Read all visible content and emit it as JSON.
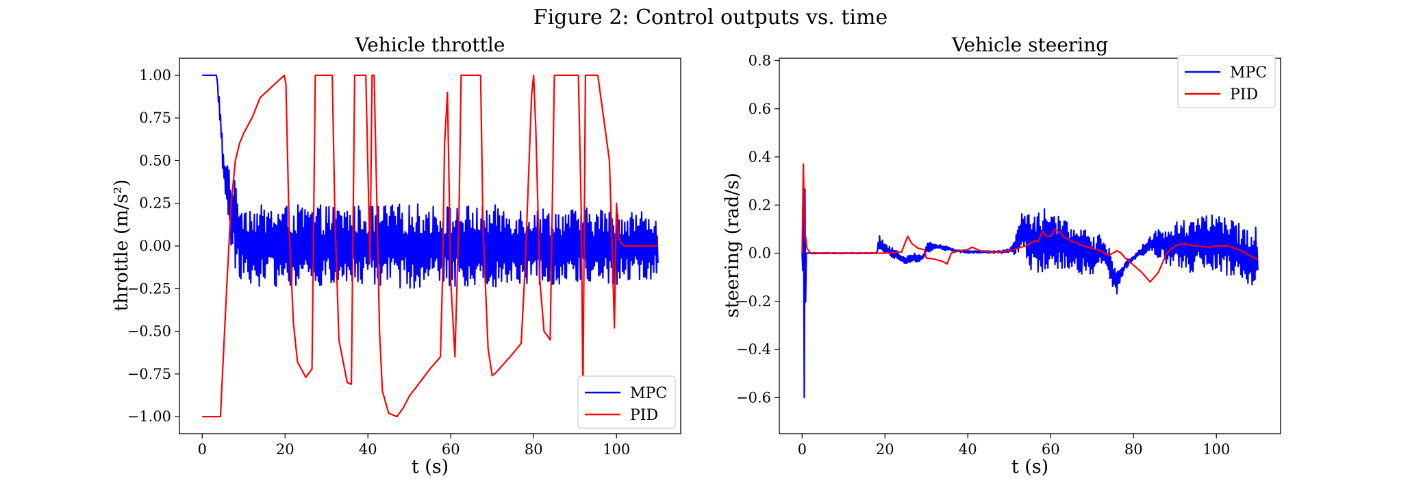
{
  "figure": {
    "title": "Figure 2: Control outputs vs. time"
  },
  "chart_data": [
    {
      "type": "line",
      "title": "Vehicle throttle",
      "xlabel": "t (s)",
      "ylabel": "throttle (m/s²)",
      "xlim": [
        -5.5,
        115.5
      ],
      "ylim": [
        -1.1,
        1.1
      ],
      "xticks": [
        0,
        20,
        40,
        60,
        80,
        100
      ],
      "yticks": [
        1.0,
        0.75,
        0.5,
        0.25,
        0.0,
        -0.25,
        -0.5,
        -0.75,
        -1.0
      ],
      "ytick_labels": [
        "1.00",
        "0.75",
        "0.50",
        "0.25",
        "0.00",
        "−0.25",
        "−0.50",
        "−0.75",
        "−1.00"
      ],
      "legend": {
        "position": "lower-right",
        "entries": [
          "MPC",
          "PID"
        ]
      },
      "grid": false,
      "series": [
        {
          "name": "MPC",
          "color": "#0000ff",
          "pattern": "oscillation",
          "x": [
            0,
            3.5,
            4,
            4.5,
            5,
            5.5,
            6,
            7,
            8,
            10,
            14,
            20,
            30,
            40,
            50,
            60,
            70,
            80,
            90,
            100,
            110
          ],
          "y": [
            1.0,
            1.0,
            0.85,
            0.7,
            0.5,
            0.42,
            0.35,
            0.22,
            0.12,
            0.02,
            0,
            0,
            0,
            0,
            0,
            0,
            0,
            0,
            0,
            0,
            0
          ],
          "amplitude": [
            0,
            0,
            0.05,
            0.07,
            0.08,
            0.12,
            0.18,
            0.24,
            0.25,
            0.25,
            0.24,
            0.24,
            0.24,
            0.24,
            0.25,
            0.24,
            0.24,
            0.23,
            0.22,
            0.23,
            0.2
          ]
        },
        {
          "name": "PID",
          "color": "#ff0000",
          "x": [
            0,
            4.4,
            5,
            6,
            7,
            8,
            9,
            10,
            12,
            14,
            19.8,
            20.2,
            21,
            22,
            23,
            25,
            26.5,
            27.3,
            31.4,
            32,
            33,
            35,
            36,
            36.8,
            39.5,
            40.5,
            41,
            41.5,
            42.2,
            42.8,
            43.5,
            45,
            47,
            48.5,
            50,
            55,
            57.5,
            58,
            58.5,
            59.2,
            60,
            61,
            62,
            62.5,
            63.2,
            67.2,
            67.8,
            69,
            70,
            71,
            75,
            77,
            78,
            79.5,
            80,
            80.5,
            81.5,
            82.5,
            84,
            85,
            86.7,
            87.8,
            90.8,
            91.5,
            91.9,
            92.5,
            94,
            95.5,
            98.3,
            99,
            99.5,
            100,
            100.5,
            101,
            102,
            104,
            110
          ],
          "y": [
            -1.0,
            -1.0,
            -0.7,
            -0.2,
            0.25,
            0.5,
            0.6,
            0.66,
            0.75,
            0.87,
            1.0,
            0.95,
            0.1,
            -0.45,
            -0.68,
            -0.77,
            -0.72,
            1.0,
            1.0,
            0.2,
            -0.55,
            -0.8,
            -0.81,
            1.0,
            1.0,
            -0.1,
            1.0,
            1.0,
            0.2,
            -0.5,
            -0.85,
            -0.98,
            -1.0,
            -0.95,
            -0.88,
            -0.72,
            -0.65,
            -0.2,
            0.6,
            0.9,
            -0.2,
            -0.65,
            0.2,
            1.0,
            1.0,
            1.0,
            0.1,
            -0.6,
            -0.76,
            -0.74,
            -0.63,
            -0.57,
            -0.1,
            0.88,
            1.0,
            0.7,
            -0.2,
            -0.5,
            -0.55,
            1.0,
            1.0,
            1.0,
            1.0,
            0.2,
            -0.9,
            1.0,
            1.0,
            1.0,
            0.5,
            -0.05,
            -0.48,
            0.25,
            0.05,
            0.02,
            0.0,
            0.0,
            0.0
          ]
        }
      ]
    },
    {
      "type": "line",
      "title": "Vehicle steering",
      "xlabel": "t (s)",
      "ylabel": "steering (rad/s)",
      "xlim": [
        -5.5,
        115.5
      ],
      "ylim": [
        -0.75,
        0.81
      ],
      "xticks": [
        0,
        20,
        40,
        60,
        80,
        100
      ],
      "yticks": [
        0.8,
        0.6,
        0.4,
        0.2,
        0.0,
        -0.2,
        -0.4,
        -0.6
      ],
      "ytick_labels": [
        "0.8",
        "0.6",
        "0.4",
        "0.2",
        "0.0",
        "−0.2",
        "−0.4",
        "−0.6"
      ],
      "legend": {
        "position": "upper-right",
        "entries": [
          "MPC",
          "PID"
        ]
      },
      "grid": false,
      "series": [
        {
          "name": "MPC",
          "color": "#0000ff",
          "pattern": "oscillation",
          "x": [
            0,
            0.3,
            0.6,
            1,
            2,
            10,
            18,
            18.5,
            20,
            23,
            25,
            27,
            29,
            30,
            32,
            35,
            37,
            40,
            45,
            48,
            50,
            51,
            52,
            53,
            54,
            55,
            56,
            57,
            58,
            59,
            60,
            61,
            62,
            63,
            65,
            67,
            69,
            70,
            72,
            73,
            75,
            76,
            78,
            80,
            82,
            84,
            86,
            88,
            90,
            94,
            98,
            100,
            102,
            106,
            110
          ],
          "y": [
            0,
            0.05,
            -0.02,
            0.0,
            0.0,
            0.0,
            0.0,
            0.04,
            0.02,
            -0.01,
            -0.03,
            -0.02,
            -0.02,
            0.02,
            0.03,
            0.02,
            0.01,
            0.005,
            0.005,
            0.005,
            0.01,
            0.02,
            0.05,
            0.08,
            0.09,
            0.05,
            0.02,
            0.03,
            0.06,
            0.05,
            0.03,
            0.02,
            0.04,
            0.05,
            0.03,
            0.01,
            0.0,
            -0.02,
            0.02,
            0.01,
            -0.08,
            -0.12,
            -0.05,
            -0.02,
            0.01,
            0.04,
            0.04,
            0.03,
            0.03,
            0.04,
            0.05,
            0.04,
            0.03,
            0.0,
            -0.02
          ],
          "amplitude": [
            0,
            0.7,
            0.6,
            0,
            0.002,
            0.002,
            0.002,
            0.04,
            0.02,
            0.02,
            0.02,
            0.02,
            0.01,
            0.03,
            0.01,
            0.01,
            0.005,
            0.005,
            0.005,
            0.005,
            0.01,
            0.03,
            0.05,
            0.09,
            0.1,
            0.12,
            0.13,
            0.14,
            0.15,
            0.15,
            0.14,
            0.13,
            0.12,
            0.11,
            0.1,
            0.1,
            0.09,
            0.08,
            0.07,
            0.06,
            0.06,
            0.05,
            0.02,
            0.01,
            0.02,
            0.04,
            0.06,
            0.08,
            0.1,
            0.12,
            0.13,
            0.12,
            0.12,
            0.12,
            0.13
          ]
        },
        {
          "name": "PID",
          "color": "#ff0000",
          "x": [
            0,
            0.3,
            0.6,
            1.2,
            2,
            10,
            20,
            24,
            25.5,
            26.5,
            28,
            29.5,
            30,
            32,
            34,
            35,
            36,
            38,
            40,
            41,
            43,
            45,
            48,
            50,
            52,
            54,
            55,
            56,
            57,
            58,
            59,
            60,
            61,
            62,
            63,
            65,
            68,
            70,
            72,
            74,
            75,
            76,
            77,
            78,
            80,
            82,
            84,
            86,
            88,
            90,
            92,
            95,
            98,
            100,
            103,
            106,
            108,
            110
          ],
          "y": [
            0,
            0.37,
            0.1,
            0.02,
            0.0,
            0.0,
            0.0,
            0.005,
            0.07,
            0.04,
            0.02,
            0.015,
            -0.02,
            -0.025,
            -0.035,
            -0.045,
            0.0,
            0.01,
            0.015,
            0.025,
            0.01,
            0.005,
            0.005,
            0.01,
            0.02,
            0.03,
            0.04,
            0.05,
            0.05,
            0.09,
            0.07,
            0.07,
            0.1,
            0.09,
            0.07,
            0.05,
            0.03,
            0.02,
            0.01,
            -0.01,
            0.0,
            0.01,
            0.0,
            -0.02,
            -0.05,
            -0.08,
            -0.12,
            -0.08,
            0.0,
            0.03,
            0.04,
            0.03,
            0.025,
            0.03,
            0.03,
            0.01,
            -0.01,
            -0.025
          ]
        }
      ]
    }
  ]
}
